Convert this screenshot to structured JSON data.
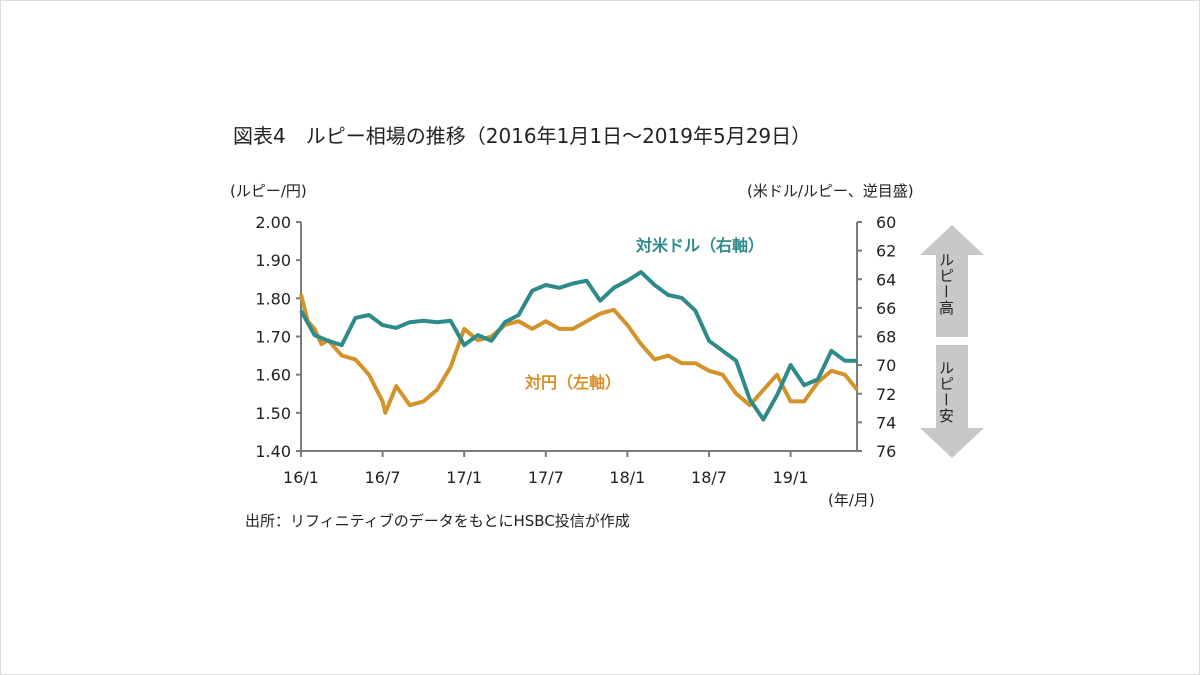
{
  "title": "図表4　ルピー相場の推移（2016年1月1日～2019年5月29日）",
  "source": "出所：リフィニティブのデータをもとにHSBC投信が作成",
  "colors": {
    "jpy": "#d4922a",
    "usd": "#2f8a8a",
    "axis": "#7a7a7a",
    "arrow": "#c8c8c8"
  },
  "arrows": {
    "up_label": "ルピー高",
    "down_label": "ルピー安"
  },
  "chart_data": {
    "type": "line",
    "title": "図表4　ルピー相場の推移（2016年1月1日～2019年5月29日）",
    "xlabel": "(年/月)",
    "ylabel_left": "(ルピー/円)",
    "ylabel_right": "(米ドル/ルピー、逆目盛)",
    "x_ticks": [
      "16/1",
      "16/7",
      "17/1",
      "17/7",
      "18/1",
      "18/7",
      "19/1"
    ],
    "x_unit_note": "x = months since 2016/1",
    "xlim": [
      0,
      41
    ],
    "ylim_left": [
      1.4,
      2.0
    ],
    "y_ticks_left": [
      "2.00",
      "1.90",
      "1.80",
      "1.70",
      "1.60",
      "1.50",
      "1.40"
    ],
    "ylim_right": [
      60,
      76
    ],
    "right_axis_inverted": true,
    "y_ticks_right": [
      "60",
      "62",
      "64",
      "66",
      "68",
      "70",
      "72",
      "74",
      "76"
    ],
    "grid": false,
    "series": [
      {
        "name": "対円（左軸）",
        "axis": "left",
        "x": [
          0,
          0.5,
          1,
          1.5,
          2,
          3,
          4,
          5,
          6,
          6.2,
          7,
          8,
          9,
          10,
          11,
          12,
          13,
          14,
          15,
          16,
          17,
          18,
          19,
          20,
          21,
          22,
          23,
          24,
          25,
          26,
          27,
          28,
          29,
          30,
          31,
          32,
          33,
          34,
          35,
          36,
          37,
          38,
          39,
          40,
          40.9
        ],
        "values": [
          1.81,
          1.74,
          1.72,
          1.68,
          1.69,
          1.65,
          1.64,
          1.6,
          1.53,
          1.5,
          1.57,
          1.52,
          1.53,
          1.56,
          1.62,
          1.72,
          1.69,
          1.7,
          1.73,
          1.74,
          1.72,
          1.74,
          1.72,
          1.72,
          1.74,
          1.76,
          1.77,
          1.73,
          1.68,
          1.64,
          1.65,
          1.63,
          1.63,
          1.61,
          1.6,
          1.55,
          1.52,
          1.56,
          1.6,
          1.53,
          1.53,
          1.58,
          1.61,
          1.6,
          1.56
        ]
      },
      {
        "name": "対米ドル（右軸）",
        "axis": "right",
        "x": [
          0,
          1,
          2,
          3,
          4,
          5,
          6,
          7,
          8,
          9,
          10,
          11,
          12,
          13,
          14,
          15,
          16,
          17,
          18,
          19,
          20,
          21,
          22,
          23,
          24,
          25,
          26,
          27,
          28,
          29,
          30,
          31,
          32,
          33,
          34,
          35,
          36,
          37,
          38,
          39,
          40,
          40.9
        ],
        "values": [
          66.2,
          67.9,
          68.3,
          68.6,
          66.7,
          66.5,
          67.2,
          67.4,
          67.0,
          66.9,
          67.0,
          66.9,
          68.6,
          67.9,
          68.3,
          67.0,
          66.5,
          64.8,
          64.4,
          64.6,
          64.3,
          64.1,
          65.5,
          64.6,
          64.1,
          63.5,
          64.4,
          65.1,
          65.3,
          66.2,
          68.3,
          69.0,
          69.7,
          72.4,
          73.8,
          72.1,
          70.0,
          71.4,
          71.0,
          69.0,
          69.7,
          69.7
        ]
      }
    ]
  }
}
